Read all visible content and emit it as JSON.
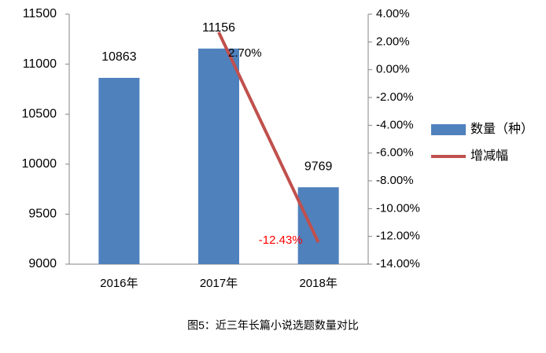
{
  "chart_data": {
    "type": "bar_line",
    "categories": [
      "2016年",
      "2017年",
      "2018年"
    ],
    "series": [
      {
        "name": "数量（种）",
        "color": "#4f81bd",
        "type": "bar",
        "values": [
          10863,
          11156,
          9769
        ]
      },
      {
        "name": "增减幅",
        "color": "#c0504d",
        "type": "line",
        "axis": "y2",
        "values": [
          null,
          2.7,
          -12.43
        ],
        "value_labels": [
          null,
          "2.70%",
          "-12.43%"
        ]
      }
    ],
    "ylim": [
      9000,
      11500
    ],
    "yticks": [
      9000,
      9500,
      10000,
      10500,
      11000,
      11500
    ],
    "y2lim": [
      -14,
      4
    ],
    "y2ticks": [
      {
        "value": -14,
        "label": "-14.00%"
      },
      {
        "value": -12,
        "label": "-12.00%"
      },
      {
        "value": -10,
        "label": "-10.00%"
      },
      {
        "value": -8,
        "label": "-8.00%"
      },
      {
        "value": -6,
        "label": "-6.00%"
      },
      {
        "value": -4,
        "label": "-4.00%"
      },
      {
        "value": -2,
        "label": "-2.00%"
      },
      {
        "value": 0,
        "label": "0.00%"
      },
      {
        "value": 2,
        "label": "2.00%"
      },
      {
        "value": 4,
        "label": "4.00%"
      }
    ],
    "legend": "right",
    "caption": "图5：近三年长篇小说选题数量对比"
  }
}
